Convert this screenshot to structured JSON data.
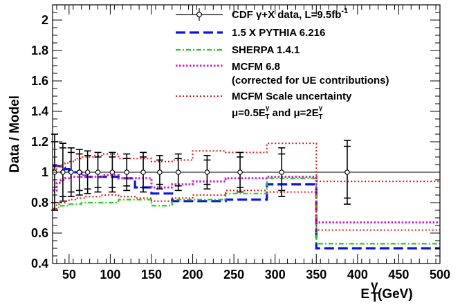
{
  "chart_data": {
    "type": "line",
    "title": "",
    "ylabel": "Data / Model",
    "xlabel": {
      "base": "E",
      "sup": "γ",
      "sub": "T",
      "unit": "(GeV)"
    },
    "xlim": [
      30,
      500
    ],
    "ylim": [
      0.4,
      2.1
    ],
    "xticks": [
      50,
      100,
      150,
      200,
      250,
      300,
      350,
      400,
      450,
      500
    ],
    "yticks": [
      0.4,
      0.6,
      0.8,
      1,
      1.2,
      1.4,
      1.6,
      1.8,
      2
    ],
    "reference_line": 1,
    "legend_position": "top-right",
    "series": [
      {
        "name": "CDF γ+X data, L=9.5fb⁻¹",
        "kind": "points",
        "color": "#000000",
        "x": [
          32.5,
          42.5,
          52.5,
          62.5,
          72.5,
          85,
          102.5,
          120,
          140,
          160,
          182.5,
          217.5,
          257.5,
          308,
          387.5
        ],
        "y": [
          1.0,
          1.0,
          1.0,
          1.0,
          1.0,
          1.0,
          1.0,
          1.0,
          1.0,
          1.0,
          1.0,
          1.0,
          1.0,
          1.0,
          1.0
        ],
        "y_upper": [
          1.25,
          1.19,
          1.16,
          1.15,
          1.14,
          1.13,
          1.13,
          1.12,
          1.13,
          1.11,
          1.12,
          1.11,
          1.13,
          1.16,
          1.21
        ],
        "y_lower": [
          0.75,
          0.81,
          0.84,
          0.85,
          0.86,
          0.87,
          0.87,
          0.88,
          0.87,
          0.89,
          0.88,
          0.89,
          0.87,
          0.84,
          0.79
        ],
        "y_upper_inner": [
          1.2,
          1.16,
          1.13,
          1.12,
          1.11,
          1.1,
          1.1,
          1.09,
          1.1,
          1.08,
          1.09,
          1.08,
          1.1,
          1.12,
          1.17
        ],
        "y_lower_inner": [
          0.8,
          0.84,
          0.87,
          0.88,
          0.89,
          0.9,
          0.9,
          0.91,
          0.9,
          0.92,
          0.91,
          0.92,
          0.9,
          0.88,
          0.83
        ]
      },
      {
        "name": "1.5 X PYTHIA 6.216",
        "kind": "step",
        "color": "#0a14e6",
        "edges": [
          30,
          35,
          40,
          45,
          50,
          55,
          60,
          65,
          70,
          80,
          90,
          110,
          130,
          150,
          175,
          200,
          240,
          290,
          350,
          500
        ],
        "values": [
          1.04,
          1.04,
          1.03,
          1.02,
          1.01,
          1.0,
          1.0,
          0.99,
          0.97,
          0.97,
          0.97,
          0.96,
          0.9,
          0.86,
          0.81,
          0.81,
          0.82,
          0.92,
          0.5
        ]
      },
      {
        "name": "SHERPA 1.4.1",
        "kind": "step",
        "color": "#22cc22",
        "edges": [
          30,
          35,
          40,
          45,
          50,
          55,
          60,
          65,
          70,
          80,
          90,
          110,
          130,
          150,
          175,
          200,
          240,
          290,
          350,
          500
        ],
        "values": [
          0.76,
          0.77,
          0.78,
          0.78,
          0.79,
          0.79,
          0.79,
          0.8,
          0.8,
          0.8,
          0.8,
          0.82,
          0.82,
          0.78,
          0.82,
          0.82,
          0.86,
          0.96,
          0.53
        ]
      },
      {
        "name": "MCFM 6.8",
        "name_line2": "(corrected for UE contributions)",
        "kind": "step",
        "color": "#cc22cc",
        "edges": [
          30,
          35,
          40,
          45,
          50,
          55,
          60,
          65,
          70,
          80,
          90,
          110,
          130,
          150,
          175,
          200,
          240,
          290,
          350,
          500
        ],
        "values": [
          0.88,
          0.93,
          0.95,
          0.96,
          0.97,
          0.97,
          0.97,
          0.98,
          0.97,
          0.97,
          0.98,
          0.96,
          0.96,
          0.9,
          0.92,
          0.94,
          0.96,
          0.97,
          0.67
        ]
      },
      {
        "name": "MCFM Scale uncertainty",
        "name_line2": "μ=0.5E_T^γ and μ=2E_T^γ",
        "kind": "step-band",
        "color": "#ee1111",
        "edges": [
          30,
          35,
          40,
          45,
          50,
          55,
          60,
          65,
          70,
          80,
          90,
          110,
          130,
          150,
          175,
          200,
          240,
          290,
          350,
          500
        ],
        "upper": [
          1.02,
          1.04,
          1.05,
          1.06,
          1.07,
          1.08,
          1.09,
          1.1,
          1.1,
          1.11,
          1.12,
          1.09,
          1.09,
          1.07,
          1.08,
          1.14,
          1.13,
          1.19,
          0.94
        ],
        "lower": [
          0.76,
          0.79,
          0.8,
          0.81,
          0.82,
          0.82,
          0.83,
          0.83,
          0.84,
          0.84,
          0.85,
          0.84,
          0.83,
          0.81,
          0.83,
          0.85,
          0.88,
          0.87,
          0.62
        ]
      }
    ]
  },
  "legend": {
    "items": [
      {
        "label": "CDF γ+X data, L=9.5fb",
        "sup": "-1",
        "color": "#000000",
        "style": "data"
      },
      {
        "label": "1.5 X PYTHIA 6.216",
        "color": "#0a14e6",
        "style": "dashed"
      },
      {
        "label": "SHERPA 1.4.1",
        "color": "#22cc22",
        "style": "dashdot"
      },
      {
        "label": "MCFM 6.8",
        "label2": "(corrected for UE contributions)",
        "color": "#cc22cc",
        "style": "dotted"
      },
      {
        "label": "MCFM Scale uncertainty",
        "color": "#ee1111",
        "style": "dotted-thin"
      }
    ],
    "scale_line": {
      "mu1": "μ=0.5E",
      "and": " and ",
      "mu2": "μ=2E",
      "sup": "γ",
      "sub": "T"
    }
  }
}
